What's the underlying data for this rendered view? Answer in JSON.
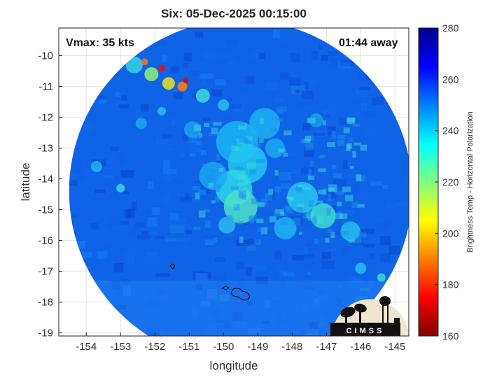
{
  "title": "Six: 05-Dec-2025 00:15:00",
  "vmax_text": "Vmax: 35 kts",
  "time_away_text": "01:44 away",
  "xlabel": "longitude",
  "ylabel": "latitude",
  "colorbar_label": "Brightness Temp - Horizontal Polarization",
  "logo_text": "CIMSS",
  "x_ticks": [
    "-154",
    "-153",
    "-152",
    "-151",
    "-150",
    "-149",
    "-148",
    "-147",
    "-146",
    "-145"
  ],
  "y_ticks": [
    "-10",
    "-11",
    "-12",
    "-13",
    "-14",
    "-15",
    "-16",
    "-17",
    "-18",
    "-19"
  ],
  "colorbar_ticks": [
    "280",
    "260",
    "240",
    "220",
    "200",
    "180",
    "160"
  ],
  "map": {
    "lon_range": [
      -154.8,
      -144.6
    ],
    "lat_range": [
      -19.1,
      -9.1
    ],
    "colormap": "jet",
    "value_range": [
      160,
      280
    ],
    "background_value": 255,
    "swath_center": [
      -149.5,
      -14.4
    ],
    "swath_radius_deg": 5.0
  },
  "colors": {
    "jet": [
      "#00008f",
      "#0000ff",
      "#0080ff",
      "#00ffff",
      "#80ff80",
      "#ffff00",
      "#ff8000",
      "#ff0000",
      "#800000"
    ]
  }
}
